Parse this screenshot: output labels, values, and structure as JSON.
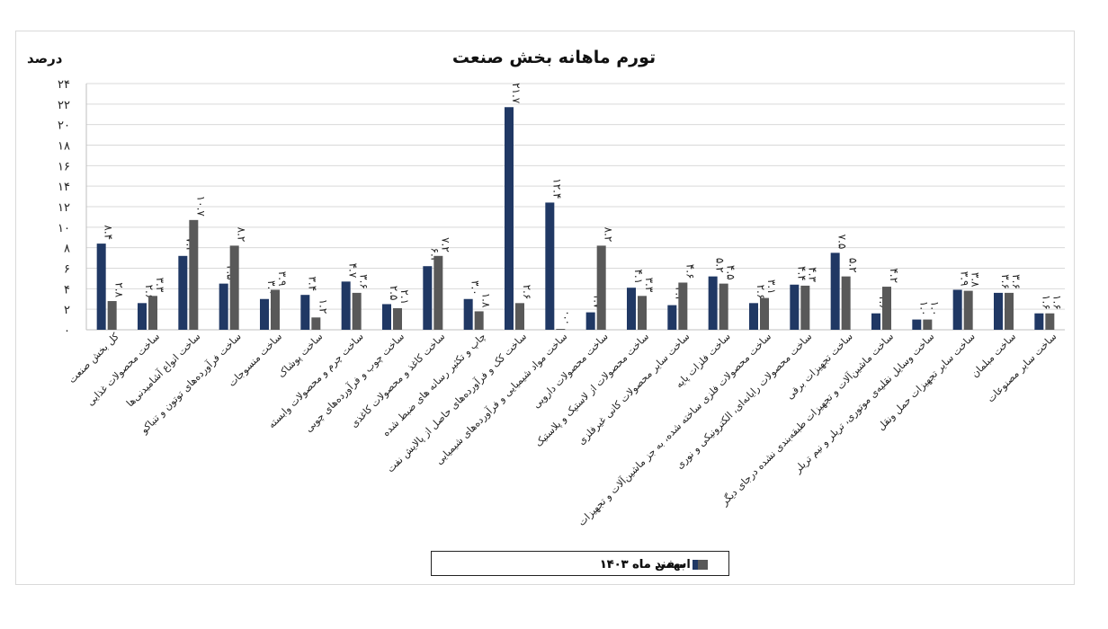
{
  "chart_data": {
    "type": "bar",
    "title": "تورم ماهانه بخش صنعت",
    "ylabel": "درصد",
    "ylim": [
      0,
      24
    ],
    "yticks": [
      "۰",
      "۲",
      "۴",
      "۶",
      "۸",
      "۱۰",
      "۱۲",
      "۱۴",
      "۱۶",
      "۱۸",
      "۲۰",
      "۲۲",
      "۲۴"
    ],
    "grid": true,
    "legend_position": "bottom",
    "categories": [
      "کل بخش صنعت",
      "ساخت محصولات غذایی",
      "ساخت انواع آشامیدنی‌ها",
      "ساخت فرآورده‌های توتون و تنباکو",
      "ساخت منسوجات",
      "ساخت پوشاک",
      "ساخت چرم و محصولات وابسته",
      "ساخت چوب و فرآورده‌های چوبی",
      "ساخت کاغذ و محصولات کاغذی",
      "چاپ و تکثیر رسانه های ضبط شده",
      "ساخت کک و فرآورده‌های حاصل از پالایش نفت",
      "ساخت مواد شیمیایی و فرآورده‌های شیمیایی",
      "ساخت محصولات دارویی",
      "ساخت محصولات از لاستیک و پلاستیک",
      "ساخت سایر محصولات کانی غیرفلزی",
      "ساخت فلزات پایه",
      "ساخت محصولات فلزی ساخته شده، به جز ماشین‌آلات و تجهیزات",
      "ساخت محصولات رایانه‌ای، الکترونیکی و نوری",
      "ساخت تجهیزات برقی",
      "ساخت ماشین‌آلات و تجهیزات طبقه‌بندی نشده درجای دیگر",
      "ساخت وسایل نقلیه‌ی موتوری، تریلر و نیم تریلر",
      "ساخت سایر تجهیزات حمل ونقل",
      "ساخت مبلمان",
      "ساخت سایر مصنوعات"
    ],
    "series": [
      {
        "name": "بهمن ماه ۱۴۰۳",
        "color": "#203864",
        "values": [
          8.4,
          2.6,
          7.2,
          4.5,
          3.0,
          3.4,
          4.7,
          2.5,
          6.2,
          3.0,
          21.7,
          12.4,
          1.7,
          4.1,
          2.4,
          5.2,
          2.6,
          4.4,
          7.5,
          1.6,
          1.0,
          3.9,
          3.6,
          1.6
        ],
        "labels": [
          "۸.۴",
          "۲.۶",
          "۷.۲",
          "۴.۵",
          "۳.۰",
          "۳.۴",
          "۴.۷",
          "۲.۵",
          "۶.۲",
          "۳.۰",
          "۲۱.۷",
          "۱۲.۴",
          "۱.۷",
          "۴.۱",
          "۲.۴",
          "۵.۲",
          "۲.۶",
          "۴.۴",
          "۷.۵",
          "۱.۶",
          "۱.۰",
          "۳.۹",
          "۳.۶",
          "۱.۶"
        ]
      },
      {
        "name": "اسفند ماه ۱۴۰۳",
        "color": "#595959",
        "values": [
          2.8,
          3.3,
          10.7,
          8.2,
          3.9,
          1.2,
          3.6,
          2.1,
          7.2,
          1.8,
          2.6,
          0.0,
          8.2,
          3.3,
          4.6,
          4.5,
          3.1,
          4.3,
          5.2,
          4.2,
          1.0,
          3.8,
          3.6,
          1.6
        ],
        "labels": [
          "۲.۸",
          "۳.۳",
          "۱۰.۷",
          "۸.۲",
          "۳.۹",
          "۱.۲",
          "۳.۶",
          "۲.۱",
          "۷.۲",
          "۱.۸",
          "۲.۶",
          "۰.۰",
          "۸.۲",
          "۳.۳",
          "۴.۶",
          "۴.۵",
          "۳.۱",
          "۴.۳",
          "۵.۲",
          "۴.۲",
          "۱.۰",
          "۳.۸",
          "۳.۶",
          "۱.۶"
        ]
      }
    ]
  }
}
